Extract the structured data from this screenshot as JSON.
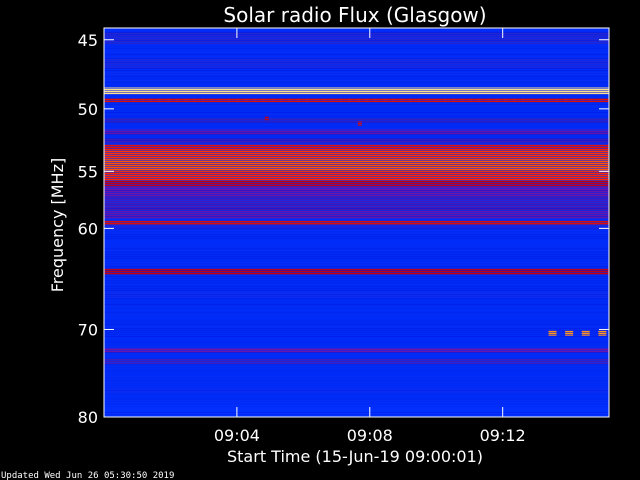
{
  "chart_data": {
    "type": "heatmap",
    "title": "Solar radio Flux (Glasgow)",
    "xlabel": "Start Time (15-Jun-19 09:00:01)",
    "ylabel": "Frequency [MHz]",
    "ylim": [
      44.2,
      80
    ],
    "xlim_minutes": [
      0,
      15.2
    ],
    "x_ticks": [
      {
        "minute": 4,
        "label": "09:04"
      },
      {
        "minute": 8,
        "label": "09:08"
      },
      {
        "minute": 12,
        "label": "09:12"
      }
    ],
    "y_ticks": [
      {
        "value": 45,
        "label": "45"
      },
      {
        "value": 50,
        "label": "50"
      },
      {
        "value": 55,
        "label": "55"
      },
      {
        "value": 60,
        "label": "60"
      },
      {
        "value": 70,
        "label": "70"
      },
      {
        "value": 80,
        "label": "80"
      }
    ],
    "colormap": [
      "#000080",
      "#0010d0",
      "#0030ff",
      "#3020c0",
      "#8010a0",
      "#c00010",
      "#ff2000",
      "#ff6010",
      "#ffb030",
      "#fff0b0"
    ],
    "background_level": 0.2,
    "bands": [
      {
        "freq_start": 44.5,
        "freq_end": 45.3,
        "level": 0.3
      },
      {
        "freq_start": 46.3,
        "freq_end": 47.0,
        "level": 0.28
      },
      {
        "freq_start": 48.4,
        "freq_end": 48.9,
        "level": 0.97
      },
      {
        "freq_start": 49.2,
        "freq_end": 49.5,
        "level": 0.6
      },
      {
        "freq_start": 50.7,
        "freq_end": 51.1,
        "level": 0.33
      },
      {
        "freq_start": 51.6,
        "freq_end": 52.0,
        "level": 0.4
      },
      {
        "freq_start": 52.3,
        "freq_end": 52.7,
        "level": 0.35
      },
      {
        "freq_start": 52.8,
        "freq_end": 53.2,
        "level": 0.62
      },
      {
        "freq_start": 53.2,
        "freq_end": 54.0,
        "level": 0.7
      },
      {
        "freq_start": 54.0,
        "freq_end": 55.0,
        "level": 0.75
      },
      {
        "freq_start": 55.0,
        "freq_end": 55.8,
        "level": 0.68
      },
      {
        "freq_start": 55.8,
        "freq_end": 56.3,
        "level": 0.55
      },
      {
        "freq_start": 56.3,
        "freq_end": 57.2,
        "level": 0.42
      },
      {
        "freq_start": 57.2,
        "freq_end": 58.4,
        "level": 0.36
      },
      {
        "freq_start": 58.4,
        "freq_end": 59.1,
        "level": 0.4
      },
      {
        "freq_start": 59.3,
        "freq_end": 59.7,
        "level": 0.6
      },
      {
        "freq_start": 59.7,
        "freq_end": 60.1,
        "level": 0.28
      },
      {
        "freq_start": 63.8,
        "freq_end": 64.4,
        "level": 0.55
      },
      {
        "freq_start": 66.0,
        "freq_end": 66.8,
        "level": 0.25
      },
      {
        "freq_start": 72.0,
        "freq_end": 72.5,
        "level": 0.42
      },
      {
        "freq_start": 73.2,
        "freq_end": 73.8,
        "level": 0.35
      },
      {
        "freq_start": 76.5,
        "freq_end": 77.0,
        "level": 0.24
      },
      {
        "freq_start": 78.5,
        "freq_end": 80.0,
        "level": 0.22
      }
    ],
    "spots": [
      {
        "minute": 4.9,
        "freq": 50.7,
        "level": 0.55
      },
      {
        "minute": 7.7,
        "freq": 51.1,
        "level": 0.6
      }
    ],
    "bursts": [
      {
        "minute": 13.5,
        "freq": 70.4,
        "level": 0.85
      },
      {
        "minute": 14.0,
        "freq": 70.4,
        "level": 0.85
      },
      {
        "minute": 14.5,
        "freq": 70.4,
        "level": 0.85
      },
      {
        "minute": 15.0,
        "freq": 70.4,
        "level": 0.85
      }
    ]
  },
  "footer": {
    "updated": "Updated Wed Jun 26 05:30:50 2019"
  }
}
